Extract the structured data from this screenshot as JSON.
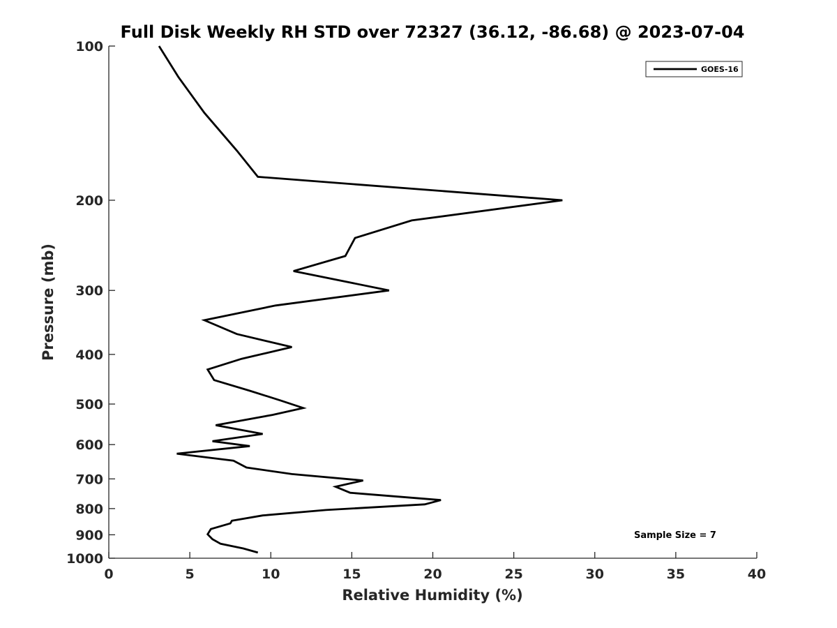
{
  "chart_data": {
    "type": "line",
    "title": "Full Disk Weekly RH STD over 72327 (36.12, -86.68) @ 2023-07-04",
    "xlabel": "Relative Humidity (%)",
    "ylabel": "Pressure (mb)",
    "xlim": [
      0,
      40
    ],
    "ylim": [
      100,
      1000
    ],
    "y_scale": "log",
    "y_inverted": true,
    "grid": false,
    "legend_position": "top-right",
    "x_ticks": [
      "0",
      "5",
      "10",
      "15",
      "20",
      "25",
      "30",
      "35",
      "40"
    ],
    "y_ticks": [
      "100",
      "200",
      "300",
      "400",
      "500",
      "600",
      "700",
      "800",
      "900",
      "1000"
    ],
    "annotation": "Sample Size = 7",
    "series": [
      {
        "name": "GOES-16",
        "color": "#000000",
        "points": [
          [
            3.1,
            100
          ],
          [
            4.3,
            115
          ],
          [
            5.9,
            135
          ],
          [
            7.9,
            160
          ],
          [
            9.2,
            180
          ],
          [
            28.0,
            200
          ],
          [
            18.7,
            219
          ],
          [
            15.2,
            237
          ],
          [
            14.6,
            257
          ],
          [
            11.4,
            275
          ],
          [
            17.3,
            300
          ],
          [
            10.3,
            321
          ],
          [
            5.9,
            343
          ],
          [
            7.9,
            365
          ],
          [
            11.3,
            387
          ],
          [
            8.2,
            408
          ],
          [
            6.1,
            428
          ],
          [
            6.5,
            449
          ],
          [
            8.7,
            471
          ],
          [
            10.6,
            492
          ],
          [
            12.0,
            509
          ],
          [
            10.1,
            525
          ],
          [
            6.6,
            550
          ],
          [
            9.5,
            572
          ],
          [
            6.4,
            591
          ],
          [
            8.7,
            604
          ],
          [
            4.2,
            625
          ],
          [
            7.7,
            645
          ],
          [
            8.5,
            665
          ],
          [
            11.3,
            685
          ],
          [
            15.7,
            705
          ],
          [
            14.0,
            725
          ],
          [
            14.9,
            745
          ],
          [
            20.5,
            770
          ],
          [
            19.5,
            785
          ],
          [
            13.4,
            805
          ],
          [
            9.5,
            825
          ],
          [
            7.6,
            845
          ],
          [
            7.5,
            855
          ],
          [
            6.3,
            877
          ],
          [
            6.1,
            898
          ],
          [
            6.4,
            918
          ],
          [
            6.9,
            937
          ],
          [
            8.3,
            957
          ],
          [
            9.2,
            975
          ]
        ]
      }
    ]
  }
}
